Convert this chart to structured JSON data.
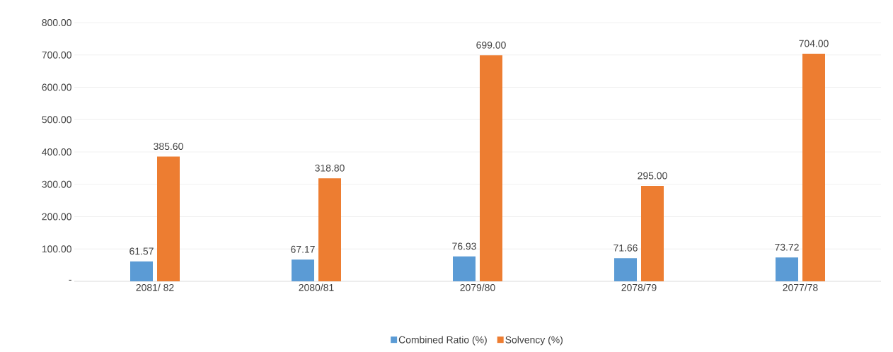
{
  "chart_data": {
    "type": "bar",
    "categories": [
      "2081/ 82",
      "2080/81",
      "2079/80",
      "2078/79",
      "2077/78"
    ],
    "series": [
      {
        "name": "Combined Ratio (%)",
        "color": "#5b9bd5",
        "values": [
          61.57,
          67.17,
          76.93,
          71.66,
          73.72
        ],
        "value_labels": [
          "61.57",
          "67.17",
          "76.93",
          "71.66",
          "73.72"
        ]
      },
      {
        "name": "Solvency (%)",
        "color": "#ed7d31",
        "values": [
          385.6,
          318.8,
          699,
          295,
          704
        ],
        "value_labels": [
          "385.60",
          "318.80",
          "699.00",
          "295.00",
          "704.00"
        ]
      }
    ],
    "ylim": [
      0,
      800
    ],
    "yticks": [
      {
        "value": 0,
        "label": "-"
      },
      {
        "value": 100,
        "label": "100.00"
      },
      {
        "value": 200,
        "label": "200.00"
      },
      {
        "value": 300,
        "label": "300.00"
      },
      {
        "value": 400,
        "label": "400.00"
      },
      {
        "value": 500,
        "label": "500.00"
      },
      {
        "value": 600,
        "label": "600.00"
      },
      {
        "value": 700,
        "label": "700.00"
      },
      {
        "value": 800,
        "label": "800.00"
      }
    ],
    "grid": "y",
    "legend": "bottom"
  }
}
